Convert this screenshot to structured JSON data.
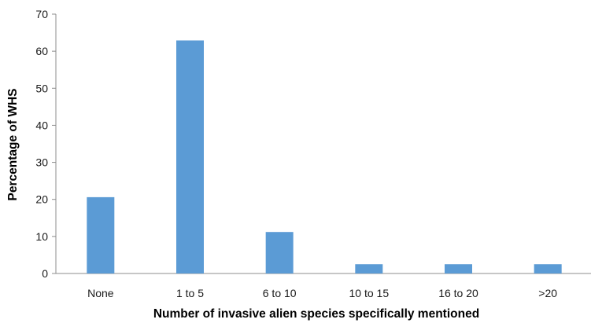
{
  "chart_data": {
    "type": "bar",
    "title": "",
    "xlabel": "Number of invasive alien species specifically mentioned",
    "ylabel": "Percentage of WHS",
    "categories": [
      "None",
      "1 to 5",
      "6 to 10",
      "10 to 15",
      "16 to 20",
      ">20"
    ],
    "series": [
      {
        "values": [
          20.6,
          62.9,
          11.2,
          2.5,
          2.5,
          2.5
        ]
      }
    ],
    "ylim": [
      0,
      70
    ],
    "yticks": [
      0,
      10,
      20,
      30,
      40,
      50,
      60,
      70
    ],
    "grid": false,
    "legend": "none",
    "bar_color": "#5b9bd5"
  }
}
